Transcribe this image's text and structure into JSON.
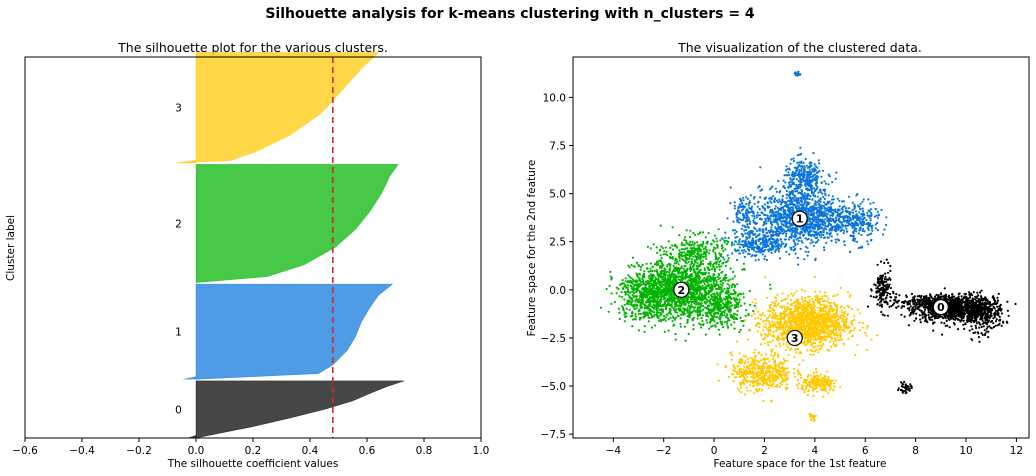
{
  "suptitle": "Silhouette analysis for k-means clustering with n_clusters = 4",
  "chart_data": [
    {
      "type": "area",
      "title": "The silhouette plot for the various clusters.",
      "xlabel": "The silhouette coefficient values",
      "ylabel": "Cluster label",
      "xlim": [
        -0.6,
        1.0
      ],
      "xticks": [
        "−0.6",
        "−0.4",
        "−0.2",
        "0.0",
        "0.2",
        "0.4",
        "0.6",
        "0.8",
        "1.0"
      ],
      "xtick_values": [
        -0.6,
        -0.4,
        -0.2,
        0.0,
        0.2,
        0.4,
        0.6,
        0.8,
        1.0
      ],
      "silhouette_avg": 0.48,
      "avg_line_color": "#d62728",
      "clusters": [
        {
          "label": "0",
          "color": "#000000",
          "size": 0.15,
          "min": -0.03,
          "max": 0.73,
          "profile": [
            [
              0,
              0.0
            ],
            [
              0.08,
              0.08
            ],
            [
              0.2,
              0.2
            ],
            [
              0.35,
              0.33
            ],
            [
              0.5,
              0.45
            ],
            [
              0.65,
              0.55
            ],
            [
              0.8,
              0.62
            ],
            [
              0.9,
              0.67
            ],
            [
              1,
              0.73
            ]
          ]
        },
        {
          "label": "1",
          "color": "#0a75dc",
          "size": 0.25,
          "min": -0.05,
          "max": 0.69,
          "profile": [
            [
              0,
              0.0
            ],
            [
              0.06,
              0.43
            ],
            [
              0.15,
              0.48
            ],
            [
              0.3,
              0.53
            ],
            [
              0.45,
              0.56
            ],
            [
              0.6,
              0.58
            ],
            [
              0.75,
              0.61
            ],
            [
              0.88,
              0.64
            ],
            [
              1,
              0.69
            ]
          ]
        },
        {
          "label": "2",
          "color": "#00b400",
          "size": 0.31,
          "min": 0.0,
          "max": 0.71,
          "profile": [
            [
              0,
              0.0
            ],
            [
              0.05,
              0.25
            ],
            [
              0.15,
              0.38
            ],
            [
              0.3,
              0.49
            ],
            [
              0.45,
              0.56
            ],
            [
              0.6,
              0.61
            ],
            [
              0.75,
              0.65
            ],
            [
              0.9,
              0.68
            ],
            [
              1,
              0.71
            ]
          ]
        },
        {
          "label": "3",
          "color": "#ffc800",
          "size": 0.29,
          "min": -0.07,
          "max": 0.66,
          "profile": [
            [
              0,
              -0.07
            ],
            [
              0.02,
              0.12
            ],
            [
              0.1,
              0.21
            ],
            [
              0.25,
              0.33
            ],
            [
              0.45,
              0.44
            ],
            [
              0.65,
              0.51
            ],
            [
              0.85,
              0.58
            ],
            [
              1,
              0.64
            ]
          ]
        }
      ]
    },
    {
      "type": "scatter",
      "title": "The visualization of the clustered data.",
      "xlabel": "Feature space for the 1st feature",
      "ylabel": "Feature space for the 2nd feature",
      "xlim": [
        -5.6,
        12.5
      ],
      "ylim": [
        -7.7,
        12.1
      ],
      "xticks": [
        "−4",
        "−2",
        "0",
        "2",
        "4",
        "6",
        "8",
        "10",
        "12"
      ],
      "xtick_values": [
        -4,
        -2,
        0,
        2,
        4,
        6,
        8,
        10,
        12
      ],
      "yticks": [
        "−7.5",
        "−5.0",
        "−2.5",
        "0.0",
        "2.5",
        "5.0",
        "7.5",
        "10.0"
      ],
      "ytick_values": [
        -7.5,
        -5.0,
        -2.5,
        0.0,
        2.5,
        5.0,
        7.5,
        10.0
      ],
      "clusters": [
        {
          "label": "0",
          "color": "#000000",
          "center": [
            9.0,
            -0.9
          ],
          "blobs": [
            [
              9.5,
              -1.0,
              1.3,
              0.55,
              900
            ],
            [
              10.7,
              -1.2,
              0.6,
              0.8,
              300
            ],
            [
              6.7,
              0.0,
              0.3,
              0.9,
              150
            ],
            [
              7.6,
              -5.1,
              0.2,
              0.2,
              40
            ],
            [
              8.5,
              -0.6,
              1.2,
              0.3,
              250
            ]
          ]
        },
        {
          "label": "1",
          "color": "#0a75dc",
          "center": [
            3.4,
            3.7
          ],
          "blobs": [
            [
              3.5,
              3.8,
              1.4,
              1.2,
              1100
            ],
            [
              3.6,
              5.8,
              0.7,
              0.8,
              300
            ],
            [
              1.8,
              2.4,
              1.0,
              0.6,
              300
            ],
            [
              5.6,
              3.5,
              0.8,
              0.9,
              250
            ],
            [
              3.3,
              11.2,
              0.1,
              0.1,
              15
            ],
            [
              1.3,
              4.0,
              0.5,
              0.7,
              120
            ]
          ]
        },
        {
          "label": "2",
          "color": "#00b400",
          "center": [
            -1.3,
            0.0
          ],
          "blobs": [
            [
              -1.2,
              0.0,
              1.6,
              1.3,
              1500
            ],
            [
              -2.8,
              -0.3,
              0.9,
              1.1,
              400
            ],
            [
              -0.7,
              2.0,
              1.0,
              0.7,
              250
            ],
            [
              0.3,
              -1.0,
              0.8,
              0.8,
              250
            ]
          ]
        },
        {
          "label": "3",
          "color": "#ffc800",
          "center": [
            3.2,
            -2.5
          ],
          "blobs": [
            [
              3.7,
              -1.7,
              1.4,
              1.1,
              1400
            ],
            [
              1.9,
              -4.3,
              1.0,
              0.8,
              450
            ],
            [
              4.2,
              -4.9,
              0.6,
              0.4,
              180
            ],
            [
              3.9,
              -6.6,
              0.1,
              0.2,
              20
            ]
          ]
        }
      ]
    }
  ]
}
